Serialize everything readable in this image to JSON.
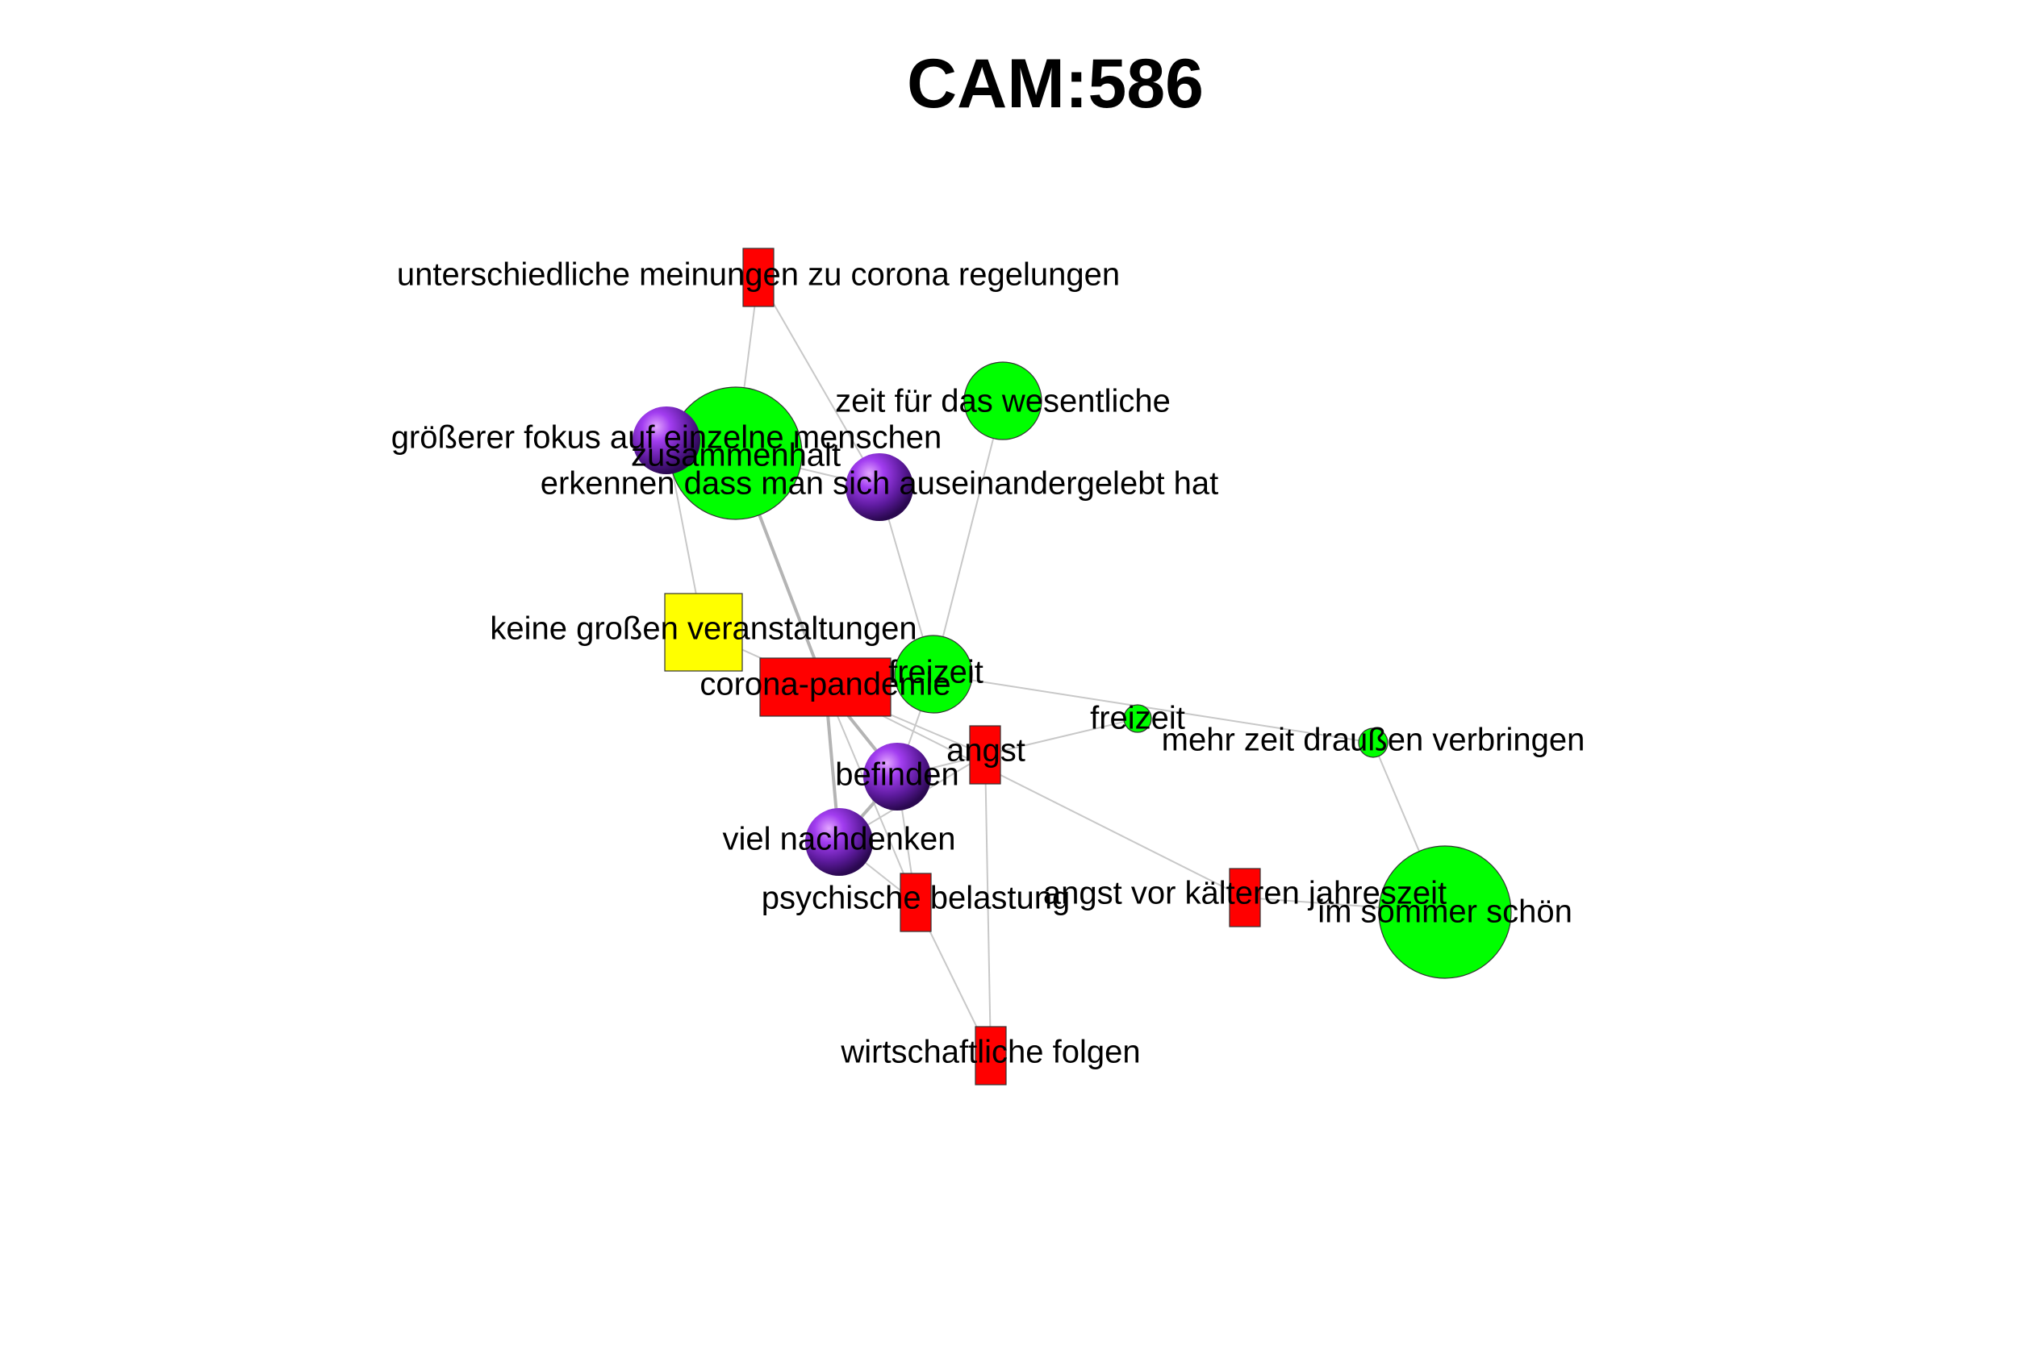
{
  "title": "CAM:586",
  "colors": {
    "positive": "#00ff00",
    "negative": "#ff0000",
    "neutral": "#ffff00",
    "ambivalent_light": "#b040ff",
    "ambivalent_dark": "#3d0f6b",
    "edge": "#c8c8c8",
    "outline": "#333333"
  },
  "nodes": [
    {
      "id": "n_unterschiedliche",
      "label": "unterschiedliche meinungen zu corona regelungen",
      "valence": "negative",
      "shape": "rect"
    },
    {
      "id": "n_zusammenhalt",
      "label": "zusammenhalt",
      "valence": "positive",
      "shape": "circle"
    },
    {
      "id": "n_fokus",
      "label": "größerer fokus auf einzelne menschen",
      "valence": "ambivalent",
      "shape": "sphere"
    },
    {
      "id": "n_zeit_wesentliche",
      "label": "zeit für das wesentliche",
      "valence": "positive",
      "shape": "circle"
    },
    {
      "id": "n_erkennen",
      "label": "erkennen dass man sich auseinandergelebt hat",
      "valence": "ambivalent",
      "shape": "sphere"
    },
    {
      "id": "n_keine_veranstaltungen",
      "label": "keine großen veranstaltungen",
      "valence": "neutral",
      "shape": "rect"
    },
    {
      "id": "n_corona",
      "label": "corona-pandemie",
      "valence": "negative",
      "shape": "rect"
    },
    {
      "id": "n_freizeit_1",
      "label": "freizeit",
      "valence": "positive",
      "shape": "circle"
    },
    {
      "id": "n_freizeit_2",
      "label": "freizeit",
      "valence": "positive",
      "shape": "circle"
    },
    {
      "id": "n_angst",
      "label": "angst",
      "valence": "negative",
      "shape": "rect"
    },
    {
      "id": "n_draussen",
      "label": "mehr zeit draußen verbringen",
      "valence": "positive",
      "shape": "circle"
    },
    {
      "id": "n_befinden",
      "label": "befinden",
      "valence": "ambivalent",
      "shape": "sphere"
    },
    {
      "id": "n_nachdenken",
      "label": "viel nachdenken",
      "valence": "ambivalent",
      "shape": "sphere"
    },
    {
      "id": "n_psychische",
      "label": "psychische belastung",
      "valence": "negative",
      "shape": "rect"
    },
    {
      "id": "n_kaeltere",
      "label": "angst vor kälteren jahreszeit",
      "valence": "negative",
      "shape": "rect"
    },
    {
      "id": "n_sommer",
      "label": "im sommer schön",
      "valence": "positive",
      "shape": "circle"
    },
    {
      "id": "n_wirtschaft",
      "label": "wirtschaftliche folgen",
      "valence": "negative",
      "shape": "rect"
    }
  ],
  "edges": [
    {
      "from": "n_unterschiedliche",
      "to": "n_zusammenhalt"
    },
    {
      "from": "n_unterschiedliche",
      "to": "n_erkennen"
    },
    {
      "from": "n_zusammenhalt",
      "to": "n_fokus"
    },
    {
      "from": "n_zusammenhalt",
      "to": "n_corona",
      "weight": "thick"
    },
    {
      "from": "n_zusammenhalt",
      "to": "n_erkennen"
    },
    {
      "from": "n_fokus",
      "to": "n_keine_veranstaltungen"
    },
    {
      "from": "n_zeit_wesentliche",
      "to": "n_freizeit_1"
    },
    {
      "from": "n_erkennen",
      "to": "n_freizeit_1"
    },
    {
      "from": "n_keine_veranstaltungen",
      "to": "n_corona"
    },
    {
      "from": "n_corona",
      "to": "n_freizeit_1"
    },
    {
      "from": "n_corona",
      "to": "n_angst"
    },
    {
      "from": "n_corona",
      "to": "n_befinden",
      "weight": "thick"
    },
    {
      "from": "n_corona",
      "to": "n_nachdenken",
      "weight": "thick"
    },
    {
      "from": "n_corona",
      "to": "n_psychische"
    },
    {
      "from": "n_corona",
      "to": "n_kaeltere"
    },
    {
      "from": "n_freizeit_1",
      "to": "n_draussen"
    },
    {
      "from": "n_freizeit_1",
      "to": "n_befinden"
    },
    {
      "from": "n_freizeit_2",
      "to": "n_angst"
    },
    {
      "from": "n_draussen",
      "to": "n_sommer"
    },
    {
      "from": "n_angst",
      "to": "n_befinden"
    },
    {
      "from": "n_angst",
      "to": "n_wirtschaft"
    },
    {
      "from": "n_angst",
      "to": "n_nachdenken"
    },
    {
      "from": "n_befinden",
      "to": "n_nachdenken",
      "weight": "thick"
    },
    {
      "from": "n_befinden",
      "to": "n_psychische"
    },
    {
      "from": "n_nachdenken",
      "to": "n_psychische"
    },
    {
      "from": "n_psychische",
      "to": "n_wirtschaft"
    },
    {
      "from": "n_kaeltere",
      "to": "n_sommer"
    }
  ]
}
